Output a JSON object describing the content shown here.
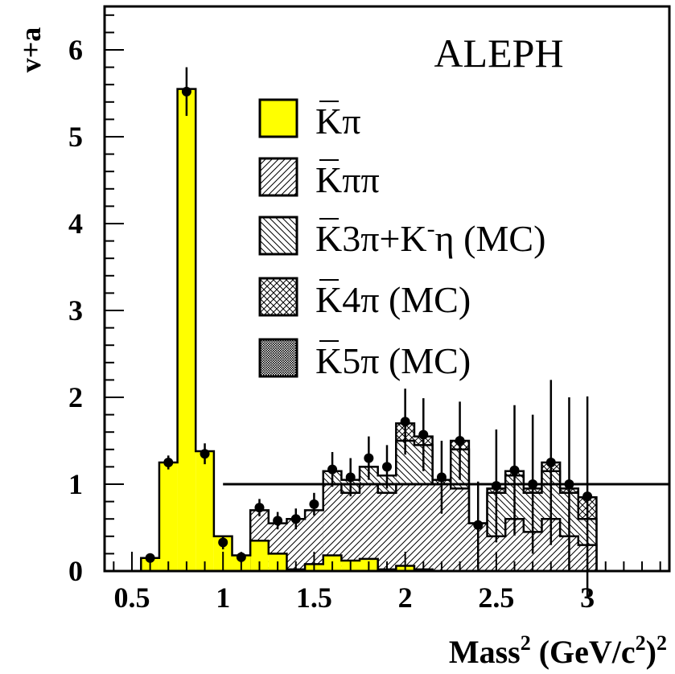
{
  "chart_data": {
    "type": "bar",
    "annotation": "ALEPH",
    "ylabel": "v+a",
    "xlabel": "Mass",
    "xlabel_exp": "2",
    "xlabel_unit_open": " (GeV/c",
    "xlabel_unit_exp": "2",
    "xlabel_unit_close": ")",
    "xlabel_unit_outer_exp": "2",
    "xlim": [
      0.35,
      3.45
    ],
    "ylim": [
      0,
      6.5
    ],
    "x_ticks": [
      0.5,
      1,
      1.5,
      2,
      2.5,
      3
    ],
    "x_tick_labels": [
      "0.5",
      "1",
      "1.5",
      "2",
      "2.5",
      "3"
    ],
    "y_ticks": [
      0,
      1,
      2,
      3,
      4,
      5,
      6
    ],
    "y_tick_labels": [
      "0",
      "1",
      "2",
      "3",
      "4",
      "5",
      "6"
    ],
    "reference_line": {
      "y": 1,
      "x_from": 1.0,
      "x_to": 3.45
    },
    "bin_width": 0.1,
    "bin_edges_start": 0.55,
    "series": [
      {
        "name": "K̄π",
        "name_base": "K",
        "name_rest": "π",
        "fill": "#ffff00",
        "bins_x": [
          0.55,
          0.65,
          0.75,
          0.85,
          0.95,
          1.05,
          1.15,
          1.25,
          1.35,
          1.45,
          1.55,
          1.65,
          1.75,
          1.85,
          1.95,
          2.05
        ],
        "top": [
          0.15,
          1.25,
          5.55,
          1.38,
          0.4,
          0.18,
          0.35,
          0.2,
          0.02,
          0.08,
          0.18,
          0.12,
          0.14,
          0.02,
          0.06,
          0.02
        ]
      },
      {
        "name": "K̄ππ",
        "name_base": "K",
        "name_rest": "ππ",
        "pattern": "hatch-fwd",
        "bins_x": [
          1.15,
          1.25,
          1.35,
          1.45,
          1.55,
          1.65,
          1.75,
          1.85,
          1.95,
          2.05,
          2.15,
          2.25,
          2.35,
          2.45,
          2.55,
          2.65,
          2.75,
          2.85,
          2.95
        ],
        "top": [
          0.7,
          0.55,
          0.6,
          0.7,
          1.0,
          0.9,
          1.0,
          0.9,
          1.0,
          1.0,
          1.0,
          0.95,
          0.55,
          0.4,
          0.6,
          0.45,
          0.6,
          0.4,
          0.3
        ]
      },
      {
        "name": "K̄3π+K⁻η (MC)",
        "name_base": "K",
        "name_rest": "3π+K",
        "name_sup": "-",
        "name_tail": "η (MC)",
        "pattern": "hatch-back",
        "bins_x": [
          1.55,
          1.65,
          1.75,
          1.85,
          1.95,
          2.05,
          2.15,
          2.25,
          2.35,
          2.45,
          2.55,
          2.65,
          2.75,
          2.85,
          2.95
        ],
        "top": [
          1.15,
          1.05,
          1.2,
          1.1,
          1.5,
          1.45,
          1.0,
          1.4,
          0.55,
          0.9,
          1.1,
          0.9,
          1.15,
          0.9,
          0.6
        ]
      },
      {
        "name": "K̄4π (MC)",
        "name_base": "K",
        "name_rest": "4π (MC)",
        "pattern": "crosshatch",
        "bins_x": [
          1.95,
          2.05,
          2.15,
          2.25,
          2.35,
          2.45,
          2.55,
          2.65,
          2.75,
          2.85,
          2.95
        ],
        "top": [
          1.7,
          1.55,
          1.05,
          1.5,
          0.55,
          0.95,
          1.15,
          0.95,
          1.25,
          0.95,
          0.85
        ]
      },
      {
        "name": "K̄5π (MC)",
        "name_base": "K",
        "name_rest": "5π (MC)",
        "pattern": "dense",
        "bins_x": [],
        "top": []
      }
    ],
    "data_points": {
      "x": [
        0.6,
        0.7,
        0.8,
        0.9,
        1.0,
        1.1,
        1.2,
        1.3,
        1.4,
        1.5,
        1.6,
        1.7,
        1.8,
        1.9,
        2.0,
        2.1,
        2.2,
        2.3,
        2.4,
        2.5,
        2.6,
        2.7,
        2.8,
        2.9,
        3.0
      ],
      "y": [
        0.15,
        1.25,
        5.52,
        1.35,
        0.33,
        0.16,
        0.73,
        0.58,
        0.6,
        0.77,
        1.17,
        1.08,
        1.3,
        1.2,
        1.72,
        1.57,
        1.08,
        1.5,
        0.53,
        0.98,
        1.16,
        1.0,
        1.25,
        1.0,
        0.86
      ],
      "err": [
        0.03,
        0.08,
        0.28,
        0.12,
        0.08,
        0.06,
        0.1,
        0.1,
        0.12,
        0.13,
        0.2,
        0.22,
        0.25,
        0.25,
        0.38,
        0.42,
        0.42,
        0.45,
        0.5,
        0.65,
        0.75,
        0.8,
        0.95,
        1.0,
        1.15
      ]
    }
  }
}
